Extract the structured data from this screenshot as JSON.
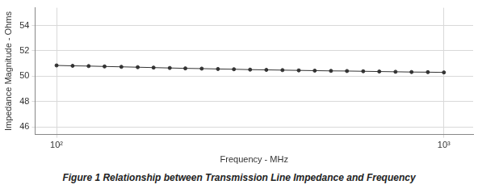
{
  "chart_data": {
    "type": "line",
    "title": "Figure 1 Relationship between Transmission Line Impedance and Frequency",
    "x_label": "Frequency - MHz",
    "y_label": "Impedance Magnitude - Ohms",
    "x": [
      100,
      110,
      121,
      133,
      147,
      162,
      178,
      196,
      215,
      237,
      261,
      287,
      316,
      348,
      383,
      422,
      464,
      511,
      562,
      619,
      681,
      750,
      825,
      909,
      1000
    ],
    "values": [
      50.85,
      50.82,
      50.8,
      50.77,
      50.74,
      50.71,
      50.68,
      50.65,
      50.62,
      50.6,
      50.57,
      50.55,
      50.52,
      50.5,
      50.48,
      50.46,
      50.44,
      50.42,
      50.41,
      50.39,
      50.37,
      50.35,
      50.33,
      50.32,
      50.3
    ],
    "color": "#333333",
    "marker": "circle",
    "line_style": "solid",
    "log": "x",
    "grid": true,
    "xlim": [
      88,
      1190
    ],
    "xticks": [
      {
        "value": 100,
        "label": "10²"
      },
      {
        "value": 1000,
        "label": "10³"
      }
    ],
    "ylim": [
      45.4,
      55.4
    ],
    "yticks": [
      46,
      48,
      50,
      52,
      54
    ]
  }
}
